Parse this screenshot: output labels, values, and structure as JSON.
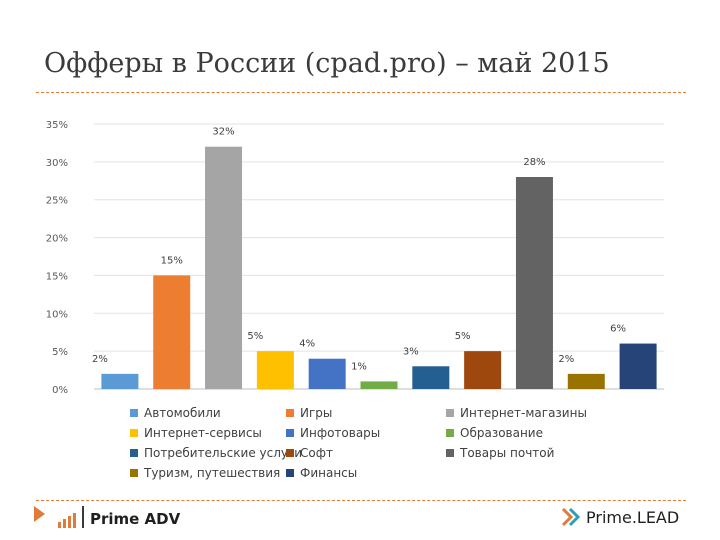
{
  "slide": {
    "title": "Офферы в России (cpad.pro) – май 2015"
  },
  "chart_data": {
    "type": "bar",
    "categories": [
      "Автомобили",
      "Игры",
      "Интернет-магазины",
      "Интернет-сервисы",
      "Инфотовары",
      "Образование",
      "Потребительские услуги",
      "Софт",
      "Товары почтой",
      "Туризм, путешествия",
      "Финансы"
    ],
    "values": [
      2,
      15,
      32,
      5,
      4,
      1,
      3,
      5,
      28,
      2,
      6
    ],
    "data_labels": [
      "2%",
      "15%",
      "32%",
      "5%",
      "4%",
      "1%",
      "3%",
      "5%",
      "28%",
      "2%",
      "6%"
    ],
    "colors": [
      "#5b9bd5",
      "#ed7d31",
      "#a5a5a5",
      "#ffc000",
      "#4472c4",
      "#70ad47",
      "#255e91",
      "#9e480e",
      "#636363",
      "#997300",
      "#264478"
    ],
    "ylim": [
      0,
      35
    ],
    "yticks": [
      "0%",
      "5%",
      "10%",
      "15%",
      "20%",
      "25%",
      "30%",
      "35%"
    ],
    "grid": true,
    "legend": "bottom"
  },
  "footer": {
    "left_logo": "Prime ADV",
    "right_logo": "Prime.LEAD",
    "accent": "#e07b39"
  }
}
